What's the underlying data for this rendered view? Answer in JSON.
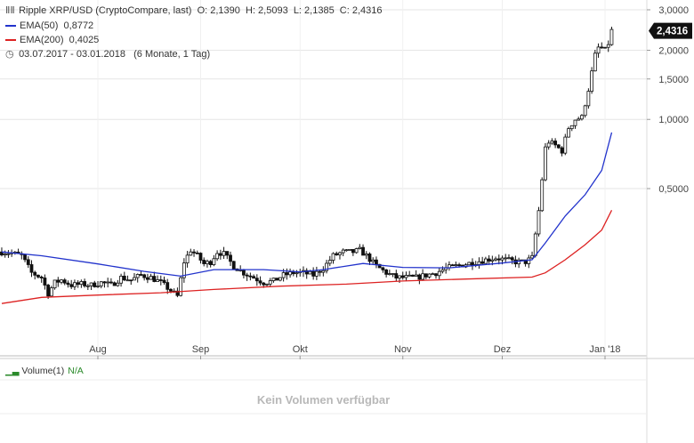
{
  "header": {
    "title": "Ripple XRP/USD (CryptoCompare, last)",
    "ohlc": "O: 2,1390  H: 2,5093  L: 2,1385  C: 2,4316",
    "ema50_label": "EMA(50)",
    "ema50_value": "0,8772",
    "ema200_label": "EMA(200)",
    "ema200_value": "0,4025",
    "period": "03.07.2017 - 03.01.2018",
    "period_note": "(6 Monate, 1 Tag)"
  },
  "last_price_badge": "2,4316",
  "volume_panel": {
    "label": "Volume(1)",
    "value": "N/A",
    "message": "Kein Volumen verfügbar"
  },
  "colors": {
    "ema50": "#2233cc",
    "ema200": "#dd2222",
    "candle": "#111111",
    "grid": "#e6e6e6",
    "badge": "#111111",
    "volume_label": "#2a8a2a"
  },
  "chart_data": {
    "type": "candlestick",
    "title": "Ripple XRP/USD (CryptoCompare, last)",
    "y_scale": "log",
    "ylim": [
      0.15,
      3.0
    ],
    "y_ticks": [
      3.0,
      2.0,
      1.5,
      1.0,
      0.5
    ],
    "y_tick_labels": [
      "3,0000",
      "2,0000",
      "1,5000",
      "1,0000",
      "0,5000"
    ],
    "x_tick_labels": [
      "Aug",
      "Sep",
      "Okt",
      "Nov",
      "Dez",
      "Jan '18"
    ],
    "x_tick_dates": [
      "2017-08-01",
      "2017-09-01",
      "2017-10-01",
      "2017-11-01",
      "2017-12-01",
      "2018-01-01"
    ],
    "x_range": [
      "2017-07-03",
      "2018-01-03"
    ],
    "close_series": {
      "name": "close",
      "points": [
        [
          "2017-07-03",
          0.265
        ],
        [
          "2017-07-06",
          0.262
        ],
        [
          "2017-07-09",
          0.255
        ],
        [
          "2017-07-12",
          0.215
        ],
        [
          "2017-07-15",
          0.205
        ],
        [
          "2017-07-17",
          0.175
        ],
        [
          "2017-07-19",
          0.195
        ],
        [
          "2017-07-21",
          0.2
        ],
        [
          "2017-07-24",
          0.19
        ],
        [
          "2017-07-27",
          0.192
        ],
        [
          "2017-07-30",
          0.19
        ],
        [
          "2017-08-02",
          0.195
        ],
        [
          "2017-08-05",
          0.19
        ],
        [
          "2017-08-08",
          0.205
        ],
        [
          "2017-08-11",
          0.2
        ],
        [
          "2017-08-14",
          0.21
        ],
        [
          "2017-08-17",
          0.205
        ],
        [
          "2017-08-20",
          0.195
        ],
        [
          "2017-08-23",
          0.18
        ],
        [
          "2017-08-25",
          0.17
        ],
        [
          "2017-08-27",
          0.24
        ],
        [
          "2017-08-29",
          0.27
        ],
        [
          "2017-08-31",
          0.255
        ],
        [
          "2017-09-02",
          0.235
        ],
        [
          "2017-09-04",
          0.24
        ],
        [
          "2017-09-06",
          0.265
        ],
        [
          "2017-09-08",
          0.26
        ],
        [
          "2017-09-11",
          0.23
        ],
        [
          "2017-09-14",
          0.215
        ],
        [
          "2017-09-17",
          0.205
        ],
        [
          "2017-09-20",
          0.195
        ],
        [
          "2017-09-23",
          0.198
        ],
        [
          "2017-09-26",
          0.21
        ],
        [
          "2017-09-29",
          0.215
        ],
        [
          "2017-10-02",
          0.215
        ],
        [
          "2017-10-05",
          0.21
        ],
        [
          "2017-10-08",
          0.225
        ],
        [
          "2017-10-11",
          0.255
        ],
        [
          "2017-10-14",
          0.265
        ],
        [
          "2017-10-17",
          0.265
        ],
        [
          "2017-10-19",
          0.27
        ],
        [
          "2017-10-21",
          0.255
        ],
        [
          "2017-10-24",
          0.23
        ],
        [
          "2017-10-27",
          0.215
        ],
        [
          "2017-10-30",
          0.205
        ],
        [
          "2017-11-02",
          0.205
        ],
        [
          "2017-11-05",
          0.205
        ],
        [
          "2017-11-08",
          0.21
        ],
        [
          "2017-11-11",
          0.215
        ],
        [
          "2017-11-14",
          0.225
        ],
        [
          "2017-11-17",
          0.23
        ],
        [
          "2017-11-20",
          0.235
        ],
        [
          "2017-11-23",
          0.24
        ],
        [
          "2017-11-26",
          0.245
        ],
        [
          "2017-11-29",
          0.25
        ],
        [
          "2017-12-02",
          0.245
        ],
        [
          "2017-12-05",
          0.24
        ],
        [
          "2017-12-08",
          0.24
        ],
        [
          "2017-12-10",
          0.25
        ],
        [
          "2017-12-12",
          0.4
        ],
        [
          "2017-12-13",
          0.55
        ],
        [
          "2017-12-14",
          0.75
        ],
        [
          "2017-12-15",
          0.8
        ],
        [
          "2017-12-17",
          0.77
        ],
        [
          "2017-12-19",
          0.73
        ],
        [
          "2017-12-21",
          0.92
        ],
        [
          "2017-12-23",
          1.0
        ],
        [
          "2017-12-25",
          1.02
        ],
        [
          "2017-12-27",
          1.35
        ],
        [
          "2017-12-29",
          1.9
        ],
        [
          "2017-12-30",
          2.05
        ],
        [
          "2017-12-31",
          2.05
        ],
        [
          "2018-01-01",
          2.0
        ],
        [
          "2018-01-02",
          2.14
        ],
        [
          "2018-01-03",
          2.4316
        ]
      ]
    },
    "series": [
      {
        "name": "EMA(50)",
        "points": [
          [
            "2017-07-03",
            0.265
          ],
          [
            "2017-07-15",
            0.255
          ],
          [
            "2017-08-01",
            0.235
          ],
          [
            "2017-08-15",
            0.218
          ],
          [
            "2017-08-26",
            0.208
          ],
          [
            "2017-09-05",
            0.222
          ],
          [
            "2017-09-20",
            0.222
          ],
          [
            "2017-10-01",
            0.217
          ],
          [
            "2017-10-08",
            0.222
          ],
          [
            "2017-10-20",
            0.236
          ],
          [
            "2017-11-01",
            0.227
          ],
          [
            "2017-11-15",
            0.226
          ],
          [
            "2017-12-01",
            0.237
          ],
          [
            "2017-12-10",
            0.245
          ],
          [
            "2017-12-14",
            0.29
          ],
          [
            "2017-12-20",
            0.38
          ],
          [
            "2017-12-26",
            0.47
          ],
          [
            "2017-12-31",
            0.6
          ],
          [
            "2018-01-03",
            0.8772
          ]
        ]
      },
      {
        "name": "EMA(200)",
        "points": [
          [
            "2017-07-03",
            0.158
          ],
          [
            "2017-07-15",
            0.168
          ],
          [
            "2017-08-01",
            0.172
          ],
          [
            "2017-08-20",
            0.176
          ],
          [
            "2017-09-05",
            0.182
          ],
          [
            "2017-09-25",
            0.188
          ],
          [
            "2017-10-15",
            0.192
          ],
          [
            "2017-11-01",
            0.198
          ],
          [
            "2017-11-20",
            0.202
          ],
          [
            "2017-12-10",
            0.206
          ],
          [
            "2017-12-14",
            0.215
          ],
          [
            "2017-12-20",
            0.245
          ],
          [
            "2017-12-26",
            0.285
          ],
          [
            "2017-12-31",
            0.33
          ],
          [
            "2018-01-03",
            0.4025
          ]
        ]
      }
    ],
    "last_value": 2.4316
  }
}
